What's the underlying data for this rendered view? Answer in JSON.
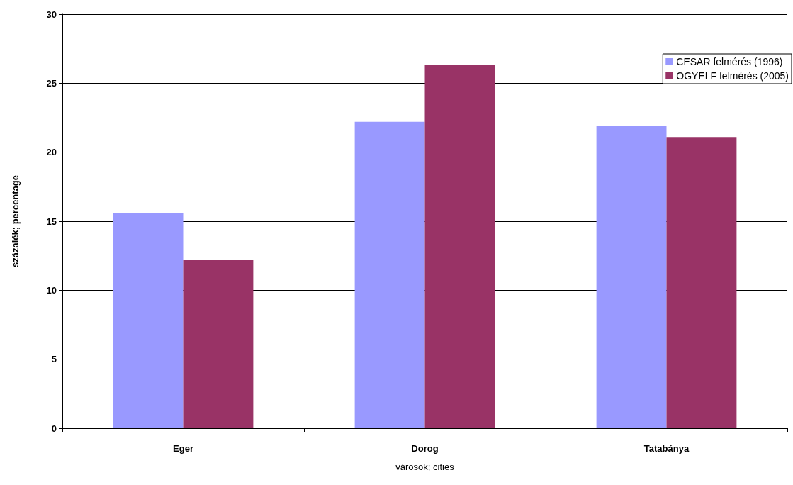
{
  "chart_data": {
    "type": "bar",
    "xlabel": "városok; cities",
    "ylabel": "százalék; percentage",
    "categories": [
      "Eger",
      "Dorog",
      "Tatabánya"
    ],
    "series": [
      {
        "name": "CESAR felmérés (1996)",
        "color": "#9999ff",
        "values": [
          15.6,
          22.2,
          21.9
        ]
      },
      {
        "name": "OGYELF felmérés (2005)",
        "color": "#993366",
        "values": [
          12.2,
          26.3,
          21.1
        ]
      }
    ],
    "ylim": [
      0,
      30
    ],
    "yticks": [
      0,
      5,
      10,
      15,
      20,
      25,
      30
    ],
    "grid": "y",
    "legend": "top right"
  }
}
